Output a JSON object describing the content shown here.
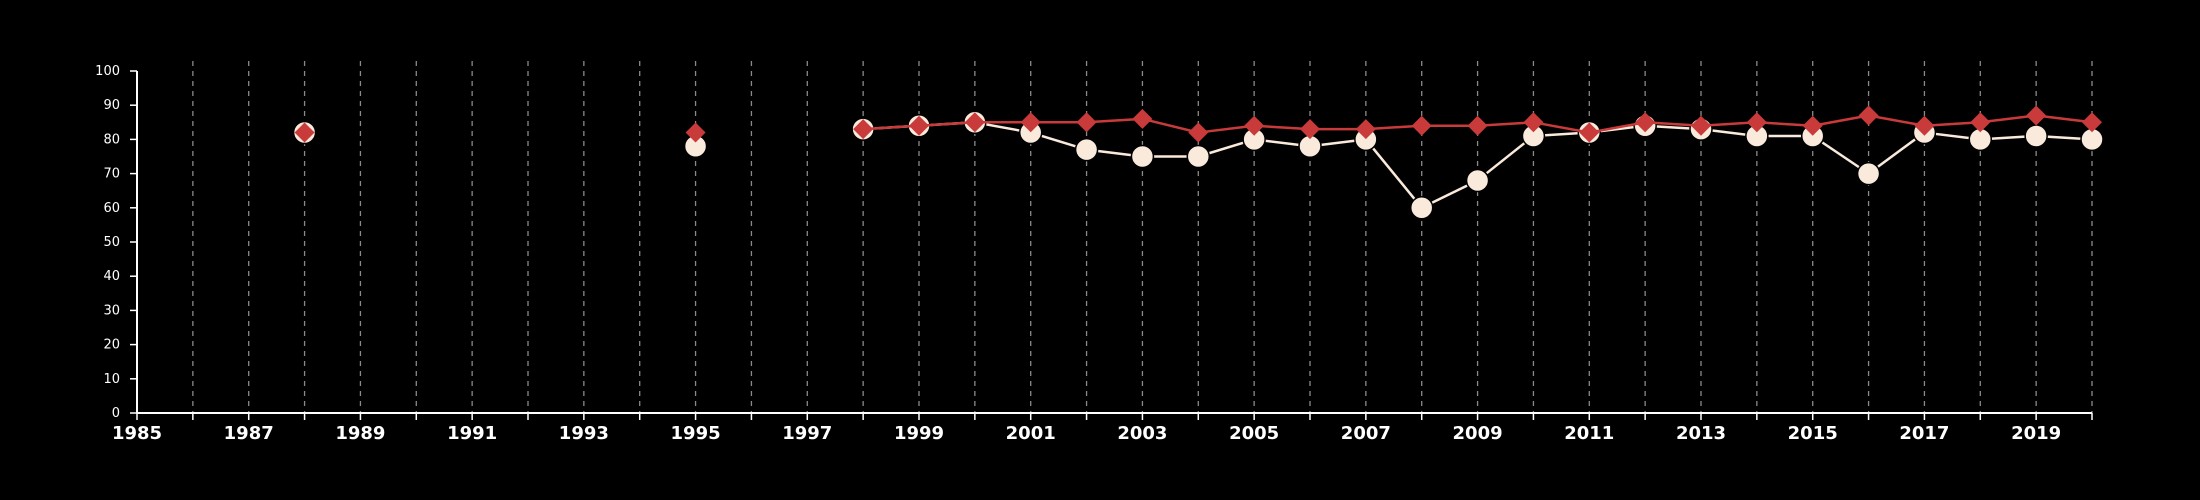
{
  "chart_data": {
    "type": "line",
    "title": "",
    "xlabel": "",
    "ylabel": "",
    "xlim": [
      1985,
      2020
    ],
    "ylim": [
      0,
      100
    ],
    "x_ticks": [
      1985,
      1987,
      1989,
      1991,
      1993,
      1995,
      1997,
      1999,
      2001,
      2003,
      2005,
      2007,
      2009,
      2011,
      2013,
      2015,
      2017,
      2019
    ],
    "y_ticks": [
      0,
      10,
      20,
      30,
      40,
      50,
      60,
      70,
      80,
      90,
      100
    ],
    "x_tick_labels": [
      "1985",
      "1987",
      "1989",
      "1991",
      "1993",
      "1995",
      "1997",
      "1999",
      "2001",
      "2003",
      "2005",
      "2007",
      "2009",
      "2011",
      "2013",
      "2015",
      "2017",
      "2019"
    ],
    "y_tick_labels": [
      "0",
      "10",
      "20",
      "30",
      "40",
      "50",
      "60",
      "70",
      "80",
      "90",
      "100"
    ],
    "vertical_gridlines": "dashed, every year",
    "horizontal_gridlines": false,
    "background": "#000000",
    "series": [
      {
        "marker": "circle",
        "color": "#faeadc",
        "points": [
          {
            "x": 1988,
            "y": 82
          },
          {
            "x": 1995,
            "y": 78
          },
          {
            "x": 1998,
            "y": 83
          },
          {
            "x": 1999,
            "y": 84
          },
          {
            "x": 2000,
            "y": 85
          },
          {
            "x": 2001,
            "y": 82
          },
          {
            "x": 2002,
            "y": 77
          },
          {
            "x": 2003,
            "y": 75
          },
          {
            "x": 2004,
            "y": 75
          },
          {
            "x": 2005,
            "y": 80
          },
          {
            "x": 2006,
            "y": 78
          },
          {
            "x": 2007,
            "y": 80
          },
          {
            "x": 2008,
            "y": 60
          },
          {
            "x": 2009,
            "y": 68
          },
          {
            "x": 2010,
            "y": 81
          },
          {
            "x": 2011,
            "y": 82
          },
          {
            "x": 2012,
            "y": 84
          },
          {
            "x": 2013,
            "y": 83
          },
          {
            "x": 2014,
            "y": 81
          },
          {
            "x": 2015,
            "y": 81
          },
          {
            "x": 2016,
            "y": 70
          },
          {
            "x": 2017,
            "y": 82
          },
          {
            "x": 2018,
            "y": 80
          },
          {
            "x": 2019,
            "y": 81
          },
          {
            "x": 2020,
            "y": 80
          }
        ]
      },
      {
        "marker": "diamond",
        "color": "#c93a3a",
        "points": [
          {
            "x": 1988,
            "y": 82
          },
          {
            "x": 1995,
            "y": 82
          },
          {
            "x": 1998,
            "y": 83
          },
          {
            "x": 1999,
            "y": 84
          },
          {
            "x": 2000,
            "y": 85
          },
          {
            "x": 2001,
            "y": 85
          },
          {
            "x": 2002,
            "y": 85
          },
          {
            "x": 2003,
            "y": 86
          },
          {
            "x": 2004,
            "y": 82
          },
          {
            "x": 2005,
            "y": 84
          },
          {
            "x": 2006,
            "y": 83
          },
          {
            "x": 2007,
            "y": 83
          },
          {
            "x": 2008,
            "y": 84
          },
          {
            "x": 2009,
            "y": 84
          },
          {
            "x": 2010,
            "y": 85
          },
          {
            "x": 2011,
            "y": 82
          },
          {
            "x": 2012,
            "y": 85
          },
          {
            "x": 2013,
            "y": 84
          },
          {
            "x": 2014,
            "y": 85
          },
          {
            "x": 2015,
            "y": 84
          },
          {
            "x": 2016,
            "y": 87
          },
          {
            "x": 2017,
            "y": 84
          },
          {
            "x": 2018,
            "y": 85
          },
          {
            "x": 2019,
            "y": 87
          },
          {
            "x": 2020,
            "y": 85
          }
        ]
      }
    ]
  }
}
